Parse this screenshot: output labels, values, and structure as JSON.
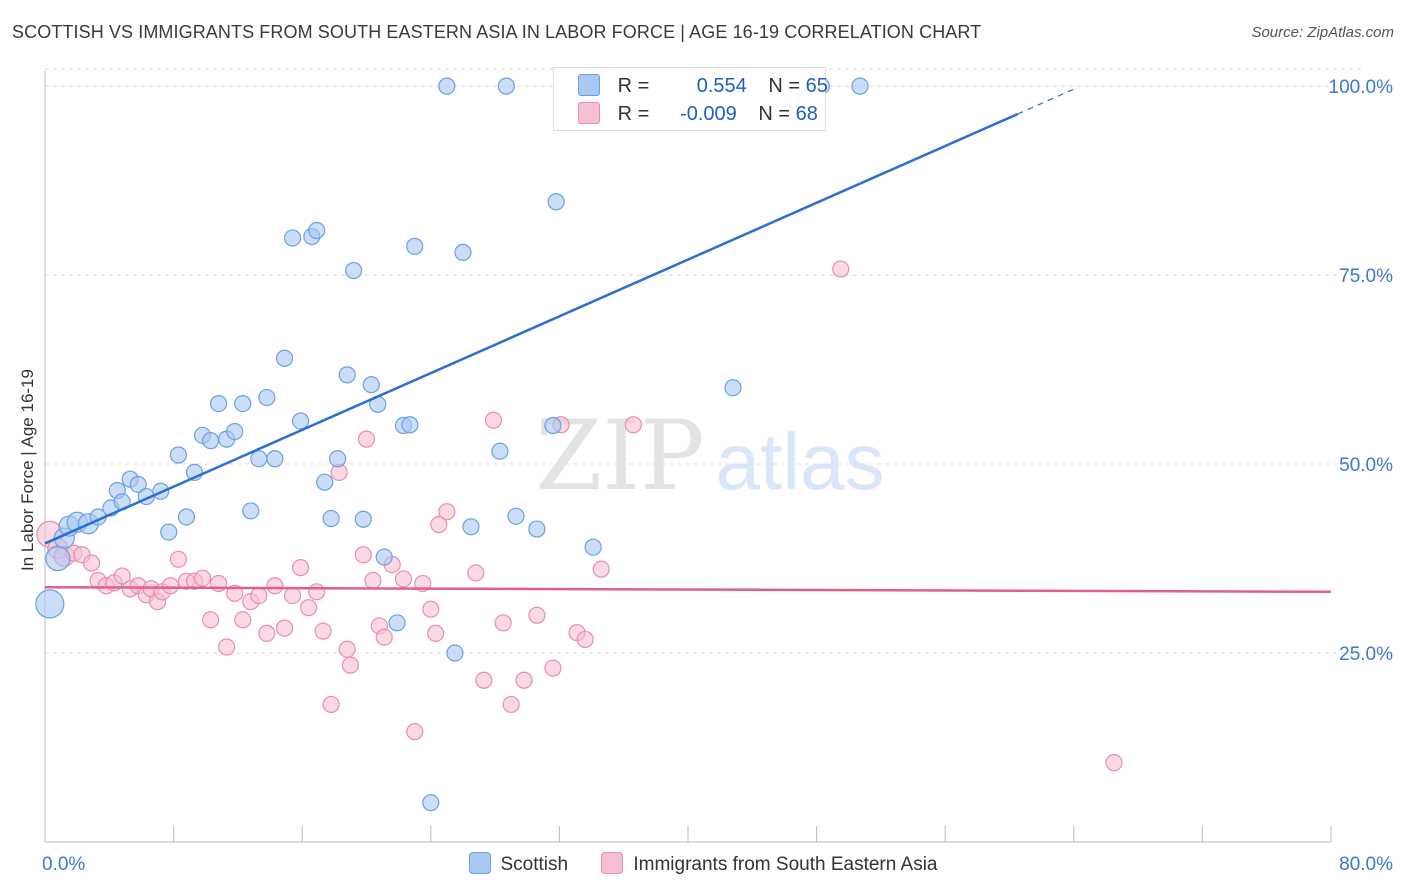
{
  "title": "SCOTTISH VS IMMIGRANTS FROM SOUTH EASTERN ASIA IN LABOR FORCE | AGE 16-19 CORRELATION CHART",
  "source": "Source: ZipAtlas.com",
  "watermark": {
    "zip": "ZIP",
    "atlas": "atlas"
  },
  "colors": {
    "blue_fill": "#a9c8f2",
    "blue_stroke": "#6e9fe0",
    "blue_line": "#2a6fd1",
    "pink_fill": "#f6bfd0",
    "pink_stroke": "#e98fac",
    "pink_line": "#e0608a",
    "tick_text": "#3d78cf",
    "grid": "#dcdcdc"
  },
  "legend": {
    "rows": [
      {
        "r_label": "R =",
        "r_value": "0.554",
        "n_label": "N =",
        "n_value": "65"
      },
      {
        "r_label": "R =",
        "r_value": "-0.009",
        "n_label": "N =",
        "n_value": "68"
      }
    ]
  },
  "bottom_legend": [
    "Scottish",
    "Immigrants from South Eastern Asia"
  ],
  "chart_data": {
    "type": "scatter",
    "xlabel": "",
    "ylabel": "In Labor Force | Age 16-19",
    "xlim": [
      0,
      80
    ],
    "ylim": [
      0,
      102
    ],
    "x_tick_labels": [
      "0.0%",
      "80.0%"
    ],
    "y_tick_labels": [
      "25.0%",
      "50.0%",
      "75.0%",
      "100.0%"
    ],
    "y_ticks": [
      25,
      50,
      75,
      100
    ],
    "grid": true,
    "series": [
      {
        "name": "Scottish",
        "trend": {
          "x0": 0,
          "y0": 39.5,
          "x1": 60.5,
          "y1": 96.3,
          "dash_to_x": 64,
          "dash_to_y": 99.6
        },
        "points": [
          [
            0.3,
            31.5,
            14
          ],
          [
            0.8,
            37.5,
            12
          ],
          [
            1.2,
            40.2,
            10
          ],
          [
            1.5,
            41.8,
            10
          ],
          [
            2.0,
            42.3,
            10
          ],
          [
            2.7,
            42.1,
            10
          ],
          [
            3.3,
            43.0,
            8
          ],
          [
            4.1,
            44.2,
            8
          ],
          [
            4.5,
            46.5,
            8
          ],
          [
            4.8,
            45.0,
            8
          ],
          [
            5.3,
            48.0,
            8
          ],
          [
            5.8,
            47.3,
            8
          ],
          [
            6.3,
            45.7,
            8
          ],
          [
            7.2,
            46.4,
            8
          ],
          [
            7.7,
            41.0,
            8
          ],
          [
            8.3,
            51.2,
            8
          ],
          [
            8.8,
            43.0,
            8
          ],
          [
            9.3,
            48.9,
            8
          ],
          [
            9.8,
            53.8,
            8
          ],
          [
            10.3,
            53.1,
            8
          ],
          [
            10.8,
            58.0,
            8
          ],
          [
            11.3,
            53.3,
            8
          ],
          [
            11.8,
            54.3,
            8
          ],
          [
            12.3,
            58.0,
            8
          ],
          [
            12.8,
            43.8,
            8
          ],
          [
            13.3,
            50.7,
            8
          ],
          [
            13.8,
            58.8,
            8
          ],
          [
            14.3,
            50.7,
            8
          ],
          [
            14.9,
            64.0,
            8
          ],
          [
            15.4,
            79.9,
            8
          ],
          [
            15.9,
            55.7,
            8
          ],
          [
            16.6,
            80.1,
            8
          ],
          [
            16.9,
            80.9,
            8
          ],
          [
            17.4,
            47.6,
            8
          ],
          [
            17.8,
            42.8,
            8
          ],
          [
            18.2,
            50.7,
            8
          ],
          [
            18.8,
            61.8,
            8
          ],
          [
            19.2,
            75.6,
            8
          ],
          [
            19.8,
            42.7,
            8
          ],
          [
            20.3,
            60.5,
            8
          ],
          [
            20.7,
            57.9,
            8
          ],
          [
            21.1,
            37.7,
            8
          ],
          [
            21.9,
            29.0,
            8
          ],
          [
            22.3,
            55.1,
            8
          ],
          [
            22.7,
            55.2,
            8
          ],
          [
            23.0,
            78.8,
            8
          ],
          [
            24.0,
            5.2,
            8
          ],
          [
            25.0,
            100.0,
            8
          ],
          [
            25.5,
            25.0,
            8
          ],
          [
            26.5,
            41.7,
            8
          ],
          [
            26.0,
            78.0,
            8
          ],
          [
            28.3,
            51.7,
            8
          ],
          [
            28.7,
            100.0,
            8
          ],
          [
            29.3,
            43.1,
            8
          ],
          [
            30.6,
            41.4,
            8
          ],
          [
            31.6,
            55.1,
            8
          ],
          [
            31.8,
            84.7,
            8
          ],
          [
            34.1,
            39.0,
            8
          ],
          [
            35.5,
            100.0,
            8
          ],
          [
            36.8,
            100.0,
            8
          ],
          [
            40.6,
            100.0,
            8
          ],
          [
            42.8,
            60.1,
            8
          ],
          [
            48.3,
            100.0,
            8
          ],
          [
            50.7,
            100.0,
            8
          ],
          [
            38.0,
            100.0,
            8
          ]
        ]
      },
      {
        "name": "Immigrants from South Eastern Asia",
        "trend": {
          "x0": 0,
          "y0": 33.7,
          "x1": 80,
          "y1": 33.1
        },
        "points": [
          [
            0.3,
            40.7,
            13
          ],
          [
            0.8,
            38.8,
            10
          ],
          [
            1.2,
            37.8,
            10
          ],
          [
            1.8,
            38.2,
            8
          ],
          [
            2.3,
            38.0,
            8
          ],
          [
            2.9,
            36.9,
            8
          ],
          [
            3.3,
            34.6,
            8
          ],
          [
            3.8,
            33.9,
            8
          ],
          [
            4.3,
            34.3,
            8
          ],
          [
            4.8,
            35.2,
            8
          ],
          [
            5.3,
            33.5,
            8
          ],
          [
            5.8,
            33.9,
            8
          ],
          [
            6.3,
            32.7,
            8
          ],
          [
            6.6,
            33.5,
            8
          ],
          [
            7.0,
            31.8,
            8
          ],
          [
            7.3,
            33.1,
            8
          ],
          [
            7.8,
            33.9,
            8
          ],
          [
            8.3,
            37.4,
            8
          ],
          [
            8.8,
            34.5,
            8
          ],
          [
            9.3,
            34.5,
            8
          ],
          [
            9.8,
            34.9,
            8
          ],
          [
            10.3,
            29.4,
            8
          ],
          [
            10.8,
            34.2,
            8
          ],
          [
            11.3,
            25.8,
            8
          ],
          [
            11.8,
            32.9,
            8
          ],
          [
            12.3,
            29.4,
            8
          ],
          [
            12.8,
            31.8,
            8
          ],
          [
            13.3,
            32.6,
            8
          ],
          [
            13.8,
            27.6,
            8
          ],
          [
            14.3,
            33.9,
            8
          ],
          [
            14.9,
            28.3,
            8
          ],
          [
            15.4,
            32.6,
            8
          ],
          [
            15.9,
            36.3,
            8
          ],
          [
            16.4,
            31.0,
            8
          ],
          [
            16.9,
            33.1,
            8
          ],
          [
            17.3,
            27.9,
            8
          ],
          [
            17.8,
            18.2,
            8
          ],
          [
            18.3,
            48.9,
            8
          ],
          [
            18.8,
            25.5,
            8
          ],
          [
            19.0,
            23.4,
            8
          ],
          [
            19.8,
            38.0,
            8
          ],
          [
            20.0,
            53.3,
            8
          ],
          [
            20.4,
            34.6,
            8
          ],
          [
            20.8,
            28.6,
            8
          ],
          [
            21.1,
            27.1,
            8
          ],
          [
            21.6,
            36.7,
            8
          ],
          [
            22.3,
            34.8,
            8
          ],
          [
            23.0,
            14.6,
            8
          ],
          [
            23.5,
            34.2,
            8
          ],
          [
            24.0,
            30.8,
            8
          ],
          [
            24.3,
            27.6,
            8
          ],
          [
            24.5,
            42.0,
            8
          ],
          [
            25.0,
            43.7,
            8
          ],
          [
            26.8,
            35.6,
            8
          ],
          [
            27.3,
            21.4,
            8
          ],
          [
            27.9,
            55.8,
            8
          ],
          [
            28.5,
            29.0,
            8
          ],
          [
            29.0,
            18.2,
            8
          ],
          [
            29.8,
            21.4,
            8
          ],
          [
            30.6,
            30.0,
            8
          ],
          [
            31.6,
            23.0,
            8
          ],
          [
            32.1,
            55.2,
            8
          ],
          [
            33.1,
            27.7,
            8
          ],
          [
            33.6,
            26.8,
            8
          ],
          [
            34.6,
            36.1,
            8
          ],
          [
            36.6,
            55.2,
            8
          ],
          [
            49.5,
            75.8,
            8
          ],
          [
            66.5,
            10.5,
            8
          ]
        ]
      }
    ]
  }
}
